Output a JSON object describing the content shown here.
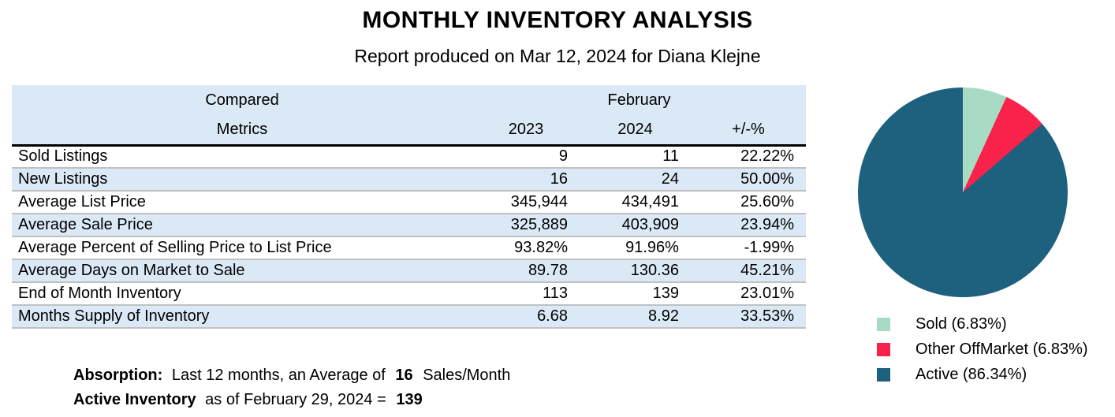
{
  "title": "MONTHLY INVENTORY ANALYSIS",
  "subtitle": "Report produced on Mar 12, 2024 for Diana Klejne",
  "table": {
    "group_headers": {
      "left": "Compared",
      "right": "February"
    },
    "columns": {
      "metric": "Metrics",
      "y2023": "2023",
      "y2024": "2024",
      "change": "+/-%"
    },
    "header_bg": "#DBE9F7",
    "alt_row_bg": "#DBE9F7",
    "rows": [
      {
        "metric": "Sold Listings",
        "y2023": "9",
        "y2024": "11",
        "change": "22.22%"
      },
      {
        "metric": "New Listings",
        "y2023": "16",
        "y2024": "24",
        "change": "50.00%"
      },
      {
        "metric": "Average List Price",
        "y2023": "345,944",
        "y2024": "434,491",
        "change": "25.60%"
      },
      {
        "metric": "Average Sale Price",
        "y2023": "325,889",
        "y2024": "403,909",
        "change": "23.94%"
      },
      {
        "metric": "Average Percent of Selling Price to List Price",
        "y2023": "93.82%",
        "y2024": "91.96%",
        "change": "-1.99%"
      },
      {
        "metric": "Average Days on Market to Sale",
        "y2023": "89.78",
        "y2024": "130.36",
        "change": "45.21%"
      },
      {
        "metric": "End of Month Inventory",
        "y2023": "113",
        "y2024": "139",
        "change": "23.01%"
      },
      {
        "metric": "Months Supply of Inventory",
        "y2023": "6.68",
        "y2024": "8.92",
        "change": "33.53%"
      }
    ]
  },
  "chart_data": {
    "type": "pie",
    "title": "",
    "start_angle_deg": 0,
    "direction": "clockwise",
    "legend_position": "below-right",
    "slices": [
      {
        "label": "Sold",
        "value_pct": 6.83,
        "color": "#A7DBC4",
        "legend_label": "Sold (6.83%)"
      },
      {
        "label": "Other OffMarket",
        "value_pct": 6.83,
        "color": "#F8224B",
        "legend_label": "Other OffMarket (6.83%)"
      },
      {
        "label": "Active",
        "value_pct": 86.34,
        "color": "#1E617E",
        "legend_label": "Active (86.34%)"
      }
    ]
  },
  "notes": {
    "absorption_label": "Absorption:",
    "absorption_text": "Last 12 months, an Average of",
    "absorption_value": "16",
    "absorption_unit": "Sales/Month",
    "active_label": "Active Inventory",
    "active_text": "as of February 29, 2024 =",
    "active_value": "139"
  }
}
